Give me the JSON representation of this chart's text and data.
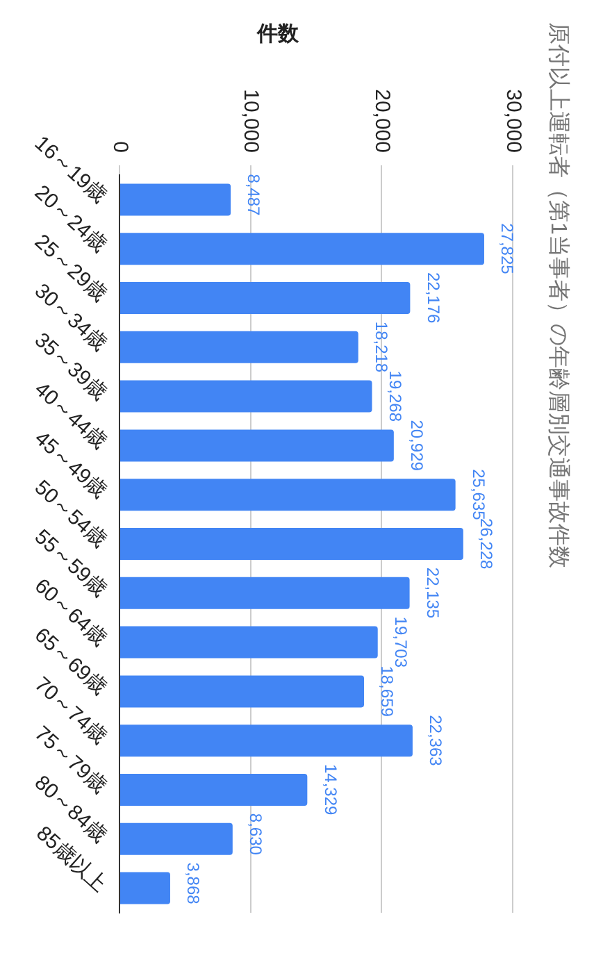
{
  "chart_data": {
    "type": "bar",
    "orientation": "horizontal",
    "title": "原付以上運転者（第1当事者）の年齢層別交通事故件数",
    "xlabel": "件数",
    "categories": [
      "16～19歳",
      "20～24歳",
      "25～29歳",
      "30～34歳",
      "35～39歳",
      "40～44歳",
      "45～49歳",
      "50～54歳",
      "55～59歳",
      "60～64歳",
      "65～69歳",
      "70～74歳",
      "75～79歳",
      "80～84歳",
      "85歳以上"
    ],
    "values": [
      8487,
      27825,
      22176,
      18218,
      19268,
      20929,
      25635,
      26228,
      22135,
      19703,
      18659,
      22363,
      14329,
      8630,
      3868
    ],
    "value_labels": [
      "8,487",
      "27,825",
      "22,176",
      "18,218",
      "19,268",
      "20,929",
      "25,635",
      "26,228",
      "22,135",
      "19,703",
      "18,659",
      "22,363",
      "14,329",
      "8,630",
      "3,868"
    ],
    "color": "#4285f4",
    "xlim": [
      0,
      30000
    ],
    "xticks": [
      0,
      {
        "value": 10000,
        "label": "10,000"
      },
      {
        "value": 20000,
        "label": "20,000"
      },
      {
        "value": 30000,
        "label": "30,000"
      }
    ],
    "grid": "x"
  }
}
